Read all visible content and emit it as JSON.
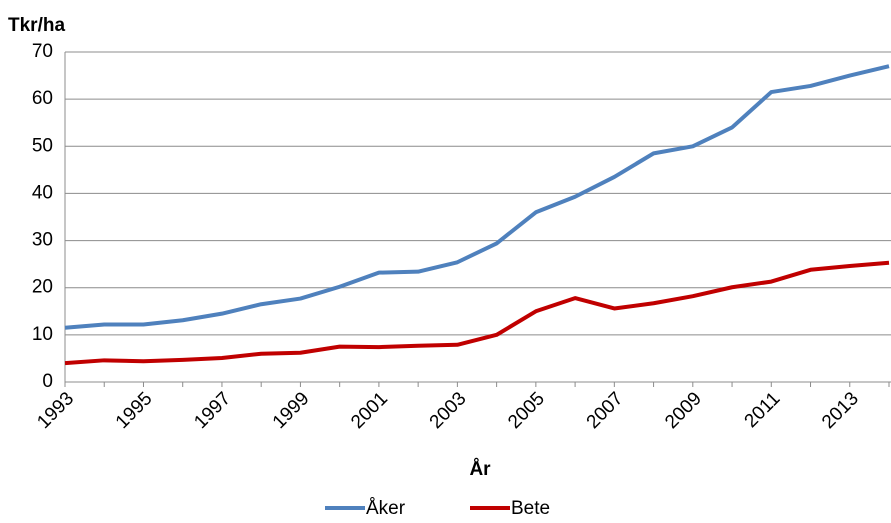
{
  "chart_data": {
    "type": "line",
    "y_label": "Tkr/ha",
    "x_label": "År",
    "categories": [
      "1993",
      null,
      "1995",
      null,
      "1997",
      null,
      "1999",
      null,
      "2001",
      null,
      "2003",
      null,
      "2005",
      null,
      "2007",
      null,
      "2009",
      null,
      "2011",
      null,
      "2013",
      null
    ],
    "series": [
      {
        "name": "Åker",
        "color": "#4f81bd",
        "values": [
          11.5,
          12.2,
          12.2,
          13.1,
          14.5,
          16.5,
          17.7,
          20.2,
          23.2,
          23.4,
          25.4,
          29.4,
          36,
          39.3,
          43.5,
          48.5,
          50,
          54,
          61.5,
          62.8,
          65,
          67
        ]
      },
      {
        "name": "Bete",
        "color": "#c00000",
        "values": [
          4.0,
          4.6,
          4.4,
          4.7,
          5.1,
          6.0,
          6.2,
          7.5,
          7.4,
          7.7,
          7.9,
          10.0,
          15.0,
          17.8,
          15.6,
          16.7,
          18.2,
          20.1,
          21.3,
          23.8,
          24.6,
          25.3
        ]
      }
    ],
    "ylim": [
      0,
      70
    ],
    "yticks": [
      0,
      10,
      20,
      30,
      40,
      50,
      60,
      70
    ],
    "grid": true,
    "legend": "bottom"
  }
}
